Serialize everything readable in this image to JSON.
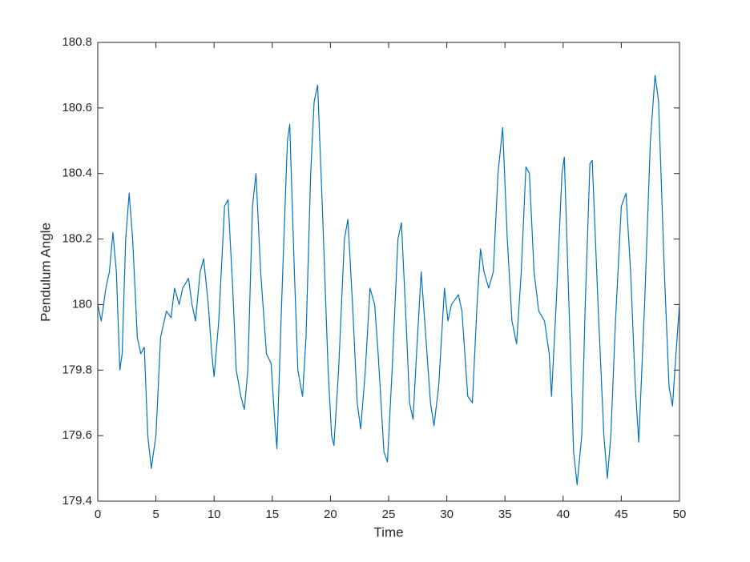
{
  "chart_data": {
    "type": "line",
    "xlabel": "Time",
    "ylabel": "Pendulum Angle",
    "color": "#0072BD",
    "x": [
      0,
      0.3,
      0.7,
      1.0,
      1.3,
      1.6,
      1.9,
      2.1,
      2.4,
      2.7,
      3.0,
      3.4,
      3.7,
      4.0,
      4.3,
      4.6,
      5.0,
      5.4,
      5.9,
      6.3,
      6.6,
      7.0,
      7.3,
      7.8,
      8.1,
      8.4,
      8.8,
      9.1,
      9.5,
      9.8,
      10.0,
      10.4,
      10.9,
      11.2,
      11.6,
      11.9,
      12.3,
      12.6,
      12.9,
      13.3,
      13.6,
      14.0,
      14.5,
      14.9,
      15.2,
      15.4,
      15.8,
      16.3,
      16.5,
      16.9,
      17.2,
      17.6,
      17.9,
      18.3,
      18.6,
      18.9,
      19.3,
      19.8,
      20.1,
      20.3,
      20.7,
      21.2,
      21.5,
      21.9,
      22.3,
      22.6,
      23.0,
      23.4,
      23.8,
      24.1,
      24.6,
      24.9,
      25.3,
      25.8,
      26.1,
      26.5,
      26.8,
      27.1,
      27.4,
      27.8,
      28.1,
      28.6,
      28.9,
      29.3,
      29.8,
      30.1,
      30.4,
      31.0,
      31.3,
      31.8,
      32.2,
      32.6,
      32.9,
      33.2,
      33.6,
      34.0,
      34.4,
      34.8,
      35.2,
      35.6,
      36.0,
      36.4,
      36.8,
      37.1,
      37.5,
      37.9,
      38.4,
      38.8,
      39.0,
      39.4,
      39.9,
      40.1,
      40.5,
      40.9,
      41.2,
      41.6,
      41.9,
      42.3,
      42.5,
      43.0,
      43.5,
      43.8,
      44.1,
      44.5,
      45.0,
      45.4,
      45.8,
      46.2,
      46.5,
      47.0,
      47.5,
      47.9,
      48.2,
      48.7,
      49.1,
      49.4,
      49.7,
      50.0
    ],
    "values": [
      180.0,
      179.95,
      180.05,
      180.1,
      180.22,
      180.1,
      179.8,
      179.85,
      180.2,
      180.34,
      180.2,
      179.9,
      179.85,
      179.87,
      179.6,
      179.5,
      179.6,
      179.9,
      179.98,
      179.96,
      180.05,
      180.0,
      180.05,
      180.08,
      180.0,
      179.95,
      180.1,
      180.14,
      180.0,
      179.85,
      179.78,
      179.95,
      180.3,
      180.32,
      180.05,
      179.8,
      179.72,
      179.68,
      179.8,
      180.3,
      180.4,
      180.1,
      179.85,
      179.82,
      179.65,
      179.56,
      180.0,
      180.5,
      180.55,
      180.1,
      179.8,
      179.72,
      179.9,
      180.4,
      180.62,
      180.67,
      180.3,
      179.8,
      179.6,
      179.57,
      179.8,
      180.2,
      180.26,
      180.0,
      179.7,
      179.62,
      179.8,
      180.05,
      180.0,
      179.85,
      179.55,
      179.52,
      179.8,
      180.2,
      180.25,
      179.95,
      179.7,
      179.65,
      179.85,
      180.1,
      179.95,
      179.7,
      179.63,
      179.75,
      180.05,
      179.95,
      180.0,
      180.03,
      179.98,
      179.72,
      179.7,
      180.0,
      180.17,
      180.1,
      180.05,
      180.1,
      180.4,
      180.54,
      180.2,
      179.95,
      179.88,
      180.1,
      180.42,
      180.4,
      180.1,
      179.98,
      179.95,
      179.85,
      179.72,
      180.0,
      180.4,
      180.45,
      180.0,
      179.55,
      179.45,
      179.6,
      180.0,
      180.43,
      180.44,
      180.0,
      179.6,
      179.47,
      179.6,
      179.95,
      180.3,
      180.34,
      180.1,
      179.75,
      179.58,
      180.0,
      180.5,
      180.7,
      180.62,
      180.1,
      179.75,
      179.69,
      179.85,
      180.0
    ],
    "xlim": [
      0,
      50
    ],
    "xticks": [
      0,
      5,
      10,
      15,
      20,
      25,
      30,
      35,
      40,
      45,
      50
    ],
    "ylim": [
      179.4,
      180.8
    ],
    "yticks": [
      179.4,
      179.6,
      179.8,
      180,
      180.2,
      180.4,
      180.6,
      180.8
    ]
  }
}
